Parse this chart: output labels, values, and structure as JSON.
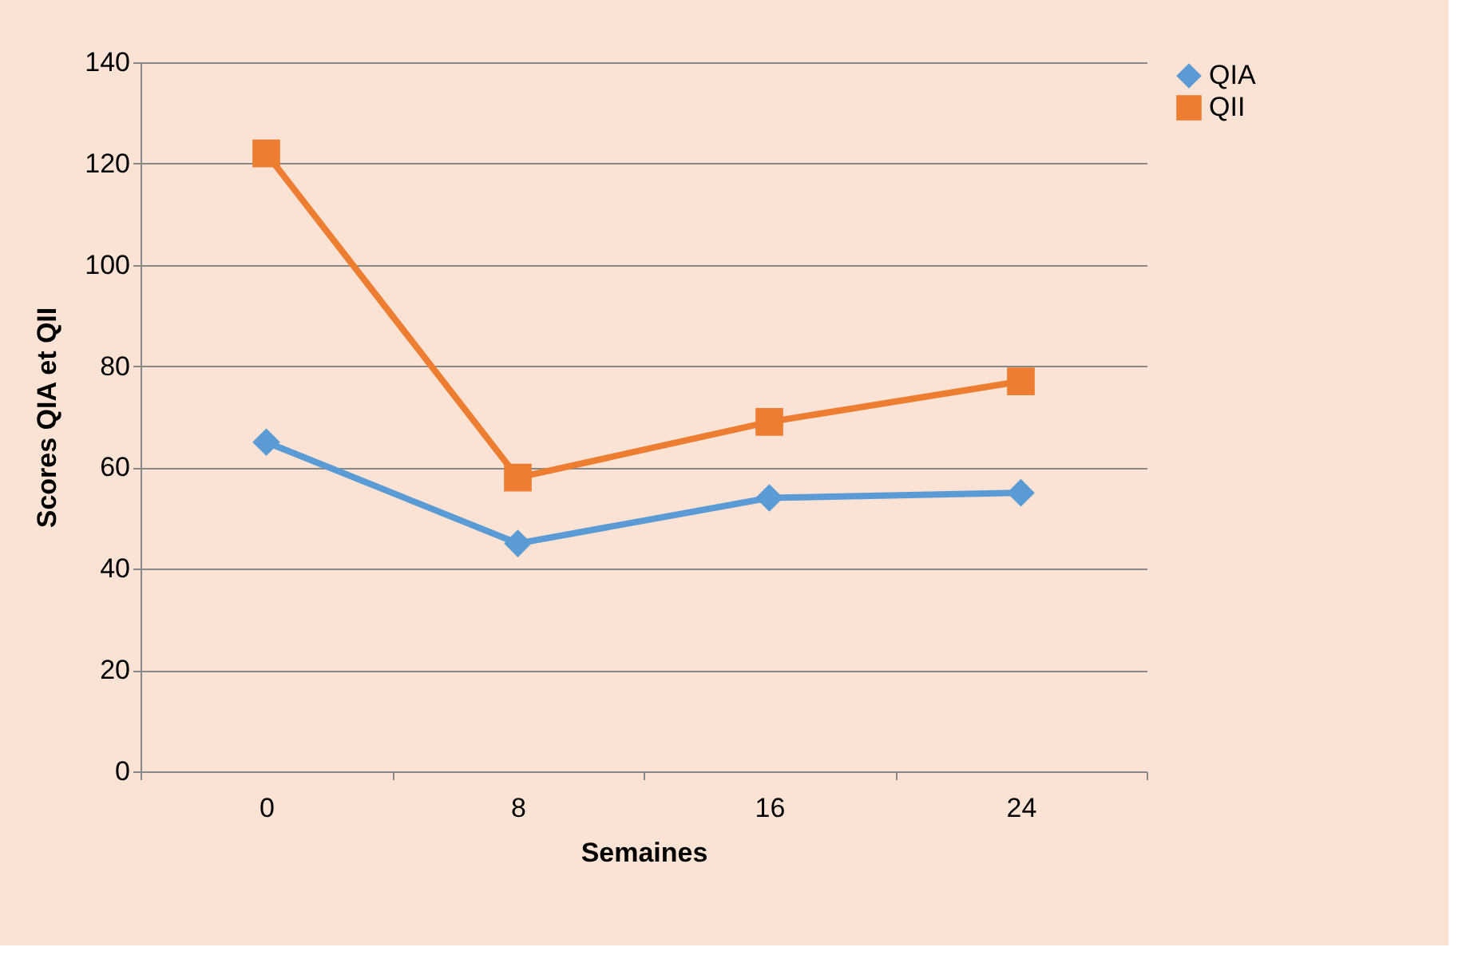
{
  "chart_data": {
    "type": "line",
    "xlabel": "Semaines",
    "ylabel": "Scores QIA et QII",
    "categories": [
      "0",
      "8",
      "16",
      "24"
    ],
    "series": [
      {
        "name": "QIA",
        "color": "#5b9bd5",
        "marker": "diamond",
        "values": [
          65,
          45,
          54,
          55
        ]
      },
      {
        "name": "QII",
        "color": "#ed7d31",
        "marker": "square",
        "values": [
          122,
          58,
          69,
          77
        ]
      }
    ],
    "ylim": [
      0,
      140
    ],
    "yticks": [
      0,
      20,
      40,
      60,
      80,
      100,
      120,
      140
    ],
    "grid": "y",
    "legend": "right",
    "line_style": "solid"
  }
}
